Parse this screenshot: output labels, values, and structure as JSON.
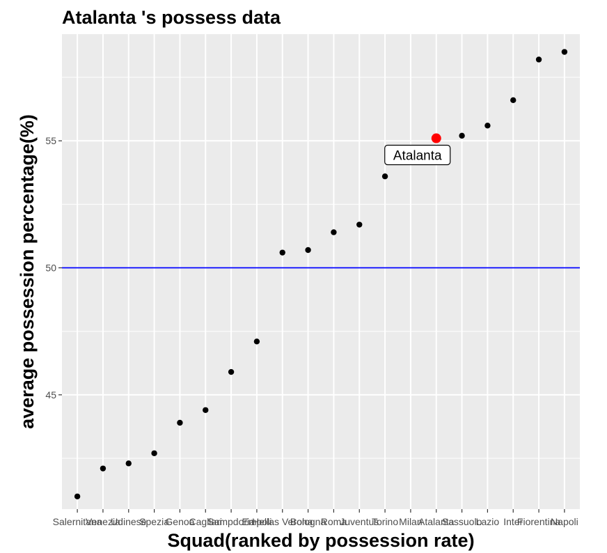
{
  "chart_data": {
    "type": "scatter",
    "title": "Atalanta 's  possess data",
    "xlabel": "Squad(ranked by possession rate)",
    "ylabel": "average possession percentage(%)",
    "categories": [
      "Salernitana",
      "Venezia",
      "Udinese",
      "Spezia",
      "Genoa",
      "Cagliari",
      "Sampdoria",
      "Empoli",
      "Hellas Verona",
      "Bologna",
      "Roma",
      "Juventus",
      "Torino",
      "Milan",
      "Atalanta",
      "Sassuolo",
      "Lazio",
      "Inter",
      "Fiorentina",
      "Napoli"
    ],
    "values": [
      41.0,
      42.1,
      42.3,
      42.7,
      43.9,
      44.4,
      45.9,
      47.1,
      50.6,
      50.7,
      51.4,
      51.7,
      53.6,
      null,
      55.1,
      55.2,
      55.6,
      56.6,
      58.2,
      58.5
    ],
    "highlight": {
      "category": "Atalanta",
      "label": "Atalanta",
      "color": "#ff0000"
    },
    "reference_line": {
      "y": 50,
      "color": "#0000ff"
    },
    "ylim": [
      40.5,
      59.2
    ],
    "yticks": [
      45,
      50,
      55
    ],
    "grid": true,
    "point_color": "#000000",
    "panel_background": "#ebebeb",
    "grid_color": "#ffffff"
  }
}
